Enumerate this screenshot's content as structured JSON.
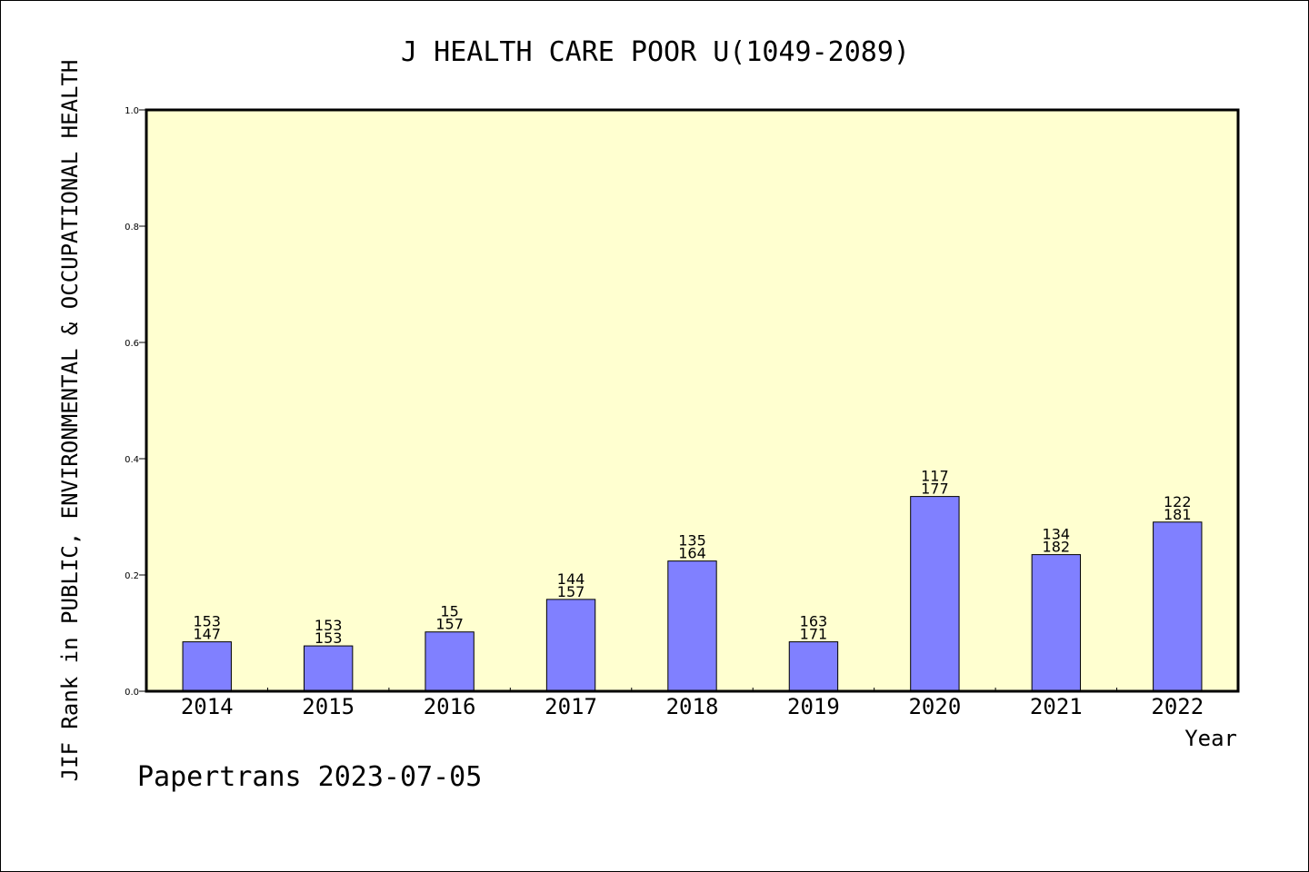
{
  "chart_data": {
    "type": "bar",
    "title": "J HEALTH CARE POOR U(1049-2089)",
    "xlabel": "Year",
    "ylabel": "JIF Rank in PUBLIC, ENVIRONMENTAL & OCCUPATIONAL HEALTH",
    "footer": "Papertrans 2023-07-05",
    "ylim": [
      0.0,
      1.0
    ],
    "y_ticks": [
      "0.0",
      "0.2",
      "0.4",
      "0.6",
      "0.8",
      "1.0"
    ],
    "categories": [
      "2014",
      "2015",
      "2016",
      "2017",
      "2018",
      "2019",
      "2020",
      "2021",
      "2022"
    ],
    "values": [
      0.085,
      0.078,
      0.102,
      0.158,
      0.224,
      0.085,
      0.335,
      0.235,
      0.291
    ],
    "label_top": [
      "153",
      "153",
      "15",
      "144",
      "135",
      "163",
      "117",
      "134",
      "122"
    ],
    "label_bottom": [
      "147",
      "153",
      "157",
      "157",
      "164",
      "171",
      "177",
      "182",
      "181"
    ],
    "colors": {
      "plot_background": "#ffffd0",
      "bar_fill": "#8080ff",
      "bar_stroke": "#000000",
      "frame": "#000000"
    },
    "grid": false
  }
}
